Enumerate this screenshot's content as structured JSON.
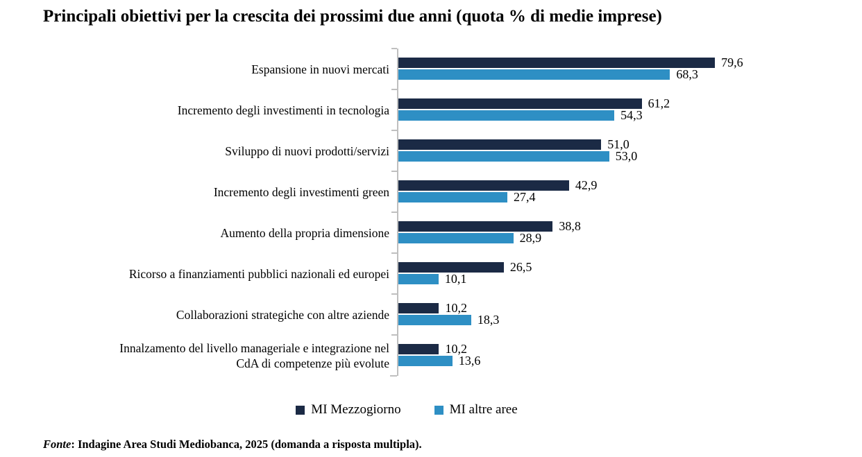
{
  "title": "Principali obiettivi per la crescita dei prossimi due anni (quota % di medie imprese)",
  "source_note": {
    "prefix": "Fonte",
    "text": ": Indagine Area Studi Mediobanca, 2025 (domanda a risposta multipla)."
  },
  "legend": [
    {
      "label": "MI Mezzogiorno",
      "color": "#1B2A45"
    },
    {
      "label": "MI altre aree",
      "color": "#2E8FC4"
    }
  ],
  "colors": {
    "mi_mezzogiorno": "#1B2A45",
    "mi_altre_aree": "#2E8FC4",
    "axis": "#BFBFBF",
    "text": "#000000"
  },
  "chart_data": {
    "type": "bar",
    "orientation": "horizontal",
    "title": "Principali obiettivi per la crescita dei prossimi due anni (quota % di medie imprese)",
    "xlabel": "",
    "ylabel": "",
    "value_axis_visible": false,
    "xlim": [
      0,
      100
    ],
    "grid": false,
    "legend_position": "bottom",
    "categories": [
      "Espansione in nuovi mercati",
      "Incremento degli investimenti in tecnologia",
      "Sviluppo di nuovi prodotti/servizi",
      "Incremento degli investimenti green",
      "Aumento della propria dimensione",
      "Ricorso a finanziamenti pubblici nazionali ed europei",
      "Collaborazioni strategiche con altre aziende",
      "Innalzamento del livello manageriale e integrazione nel\nCdA di competenze più evolute"
    ],
    "series": [
      {
        "name": "MI Mezzogiorno",
        "color": "#1B2A45",
        "values": [
          79.6,
          61.2,
          51.0,
          42.9,
          38.8,
          26.5,
          10.2,
          10.2
        ],
        "value_labels": [
          "79,6",
          "61,2",
          "51,0",
          "42,9",
          "38,8",
          "26,5",
          "10,2",
          "10,2"
        ]
      },
      {
        "name": "MI altre aree",
        "color": "#2E8FC4",
        "values": [
          68.3,
          54.3,
          53.0,
          27.4,
          28.9,
          10.1,
          18.3,
          13.6
        ],
        "value_labels": [
          "68,3",
          "54,3",
          "53,0",
          "27,4",
          "28,9",
          "10,1",
          "18,3",
          "13,6"
        ]
      }
    ]
  }
}
